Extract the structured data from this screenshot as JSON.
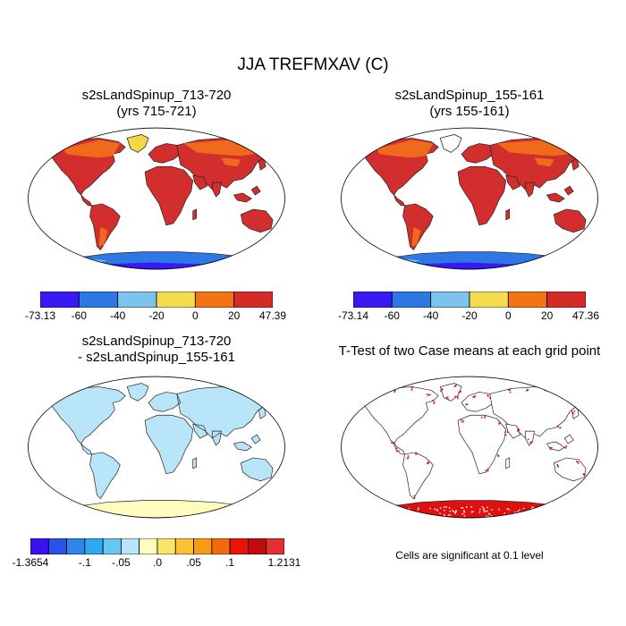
{
  "figure": {
    "title": "JJA TREFMXAV (C)"
  },
  "panels": {
    "top_left": {
      "title_line1": "s2sLandSpinup_713-720",
      "title_line2": "(yrs 715-721)",
      "colorbar": {
        "colors": [
          "#3a1af2",
          "#2e78e6",
          "#7cc3ee",
          "#f5dc4f",
          "#f27414",
          "#d42a2a"
        ],
        "labels": [
          "-73.13",
          "-60",
          "-40",
          "-20",
          "0",
          "20",
          "47.39"
        ]
      }
    },
    "top_right": {
      "title_line1": "s2sLandSpinup_155-161",
      "title_line2": "(yrs 155-161)",
      "colorbar": {
        "colors": [
          "#3a1af2",
          "#2e78e6",
          "#7cc3ee",
          "#f5dc4f",
          "#f27414",
          "#d42a2a"
        ],
        "labels": [
          "-73.14",
          "-60",
          "-40",
          "-20",
          "0",
          "20",
          "47.36"
        ]
      }
    },
    "bottom_left": {
      "title_line1": "s2sLandSpinup_713-720",
      "title_line2": "- s2sLandSpinup_155-161",
      "colorbar": {
        "colors": [
          "#3a10f0",
          "#2a52e6",
          "#2e86ea",
          "#2eaaf0",
          "#64c6f4",
          "#b8e6f8",
          "#fffcc0",
          "#fce36a",
          "#fac232",
          "#f79a14",
          "#f26a0a",
          "#e8140a",
          "#c40a0a",
          "#e23030"
        ],
        "labels": [
          "-1.3654",
          "-.1",
          "-.05",
          ".0",
          ".05",
          ".1",
          "1.2131"
        ]
      }
    },
    "bottom_right": {
      "title": "T-Test of two Case means at each grid point",
      "note": "Cells are significant at 0.1 level"
    }
  },
  "colors": {
    "land_hot": "#d22e2e",
    "land_warm": "#ef6a1c",
    "land_mild": "#f5d84a",
    "ice_light": "#7cc3ee",
    "ice_mid": "#2e78e6",
    "ice_deep": "#3a1af2",
    "significance": "#e01010"
  }
}
